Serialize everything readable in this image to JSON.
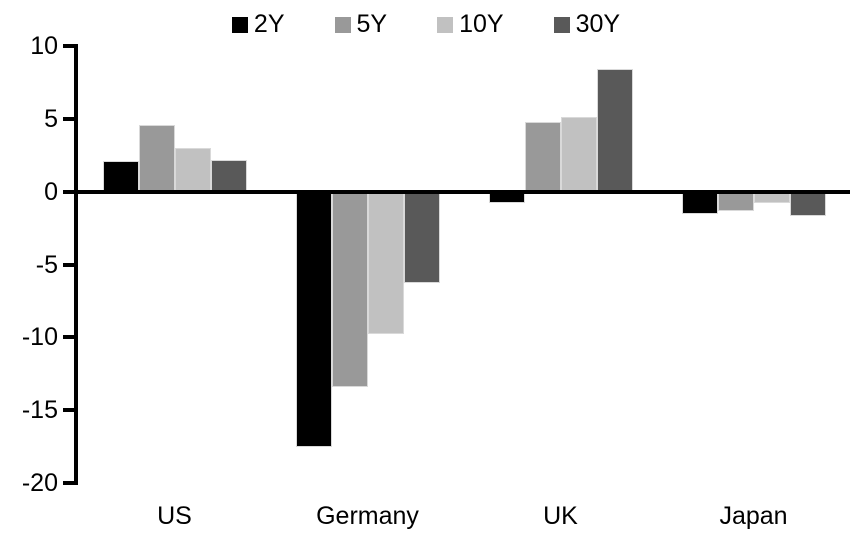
{
  "chart_data": {
    "type": "bar",
    "categories": [
      "US",
      "Germany",
      "UK",
      "Japan"
    ],
    "series": [
      {
        "name": "2Y",
        "color": "#000000",
        "values": [
          2.1,
          -17.5,
          -0.8,
          -1.5
        ]
      },
      {
        "name": "5Y",
        "color": "#999999",
        "values": [
          4.6,
          -13.4,
          4.8,
          -1.3
        ]
      },
      {
        "name": "10Y",
        "color": "#c1c1c1",
        "values": [
          3.0,
          -9.8,
          5.1,
          -0.8
        ]
      },
      {
        "name": "30Y",
        "color": "#595959",
        "values": [
          2.2,
          -6.3,
          8.4,
          -1.7
        ]
      }
    ],
    "ylim": [
      -20,
      10
    ],
    "yticks": [
      10,
      5,
      0,
      -5,
      -10,
      -15,
      -20
    ],
    "legend_position": "top",
    "grid": "off",
    "axis_color": "#000000",
    "bar_outline_color": "#d9d9d9",
    "xlabel": "",
    "ylabel": ""
  }
}
